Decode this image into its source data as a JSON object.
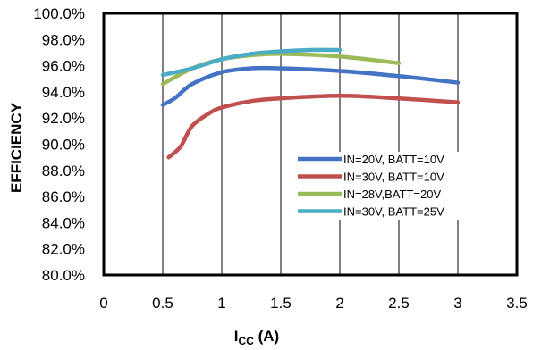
{
  "chart_data": {
    "type": "line",
    "xlabel_main": "I",
    "xlabel_sub": "CC",
    "xlabel_unit": " (A)",
    "ylabel": "EFFICIENCY",
    "xlim": [
      0,
      3.5
    ],
    "ylim": [
      80,
      100
    ],
    "x_ticks": [
      0,
      0.5,
      1,
      1.5,
      2,
      2.5,
      3,
      3.5
    ],
    "x_tick_labels": [
      "0",
      "0.5",
      "1",
      "1.5",
      "2",
      "2.5",
      "3",
      "3.5"
    ],
    "y_ticks": [
      80,
      82,
      84,
      86,
      88,
      90,
      92,
      94,
      96,
      98,
      100
    ],
    "y_tick_labels": [
      "80.0%",
      "82.0%",
      "84.0%",
      "86.0%",
      "88.0%",
      "90.0%",
      "92.0%",
      "94.0%",
      "96.0%",
      "98.0%",
      "100.0%"
    ],
    "grid": {
      "vertical": true,
      "horizontal": false
    },
    "legend_position": "center-right",
    "series": [
      {
        "name": "IN=20V, BATT=10V",
        "color": "#4472C4",
        "points": [
          [
            0.5,
            93.0
          ],
          [
            0.6,
            93.5
          ],
          [
            0.75,
            94.6
          ],
          [
            1.0,
            95.5
          ],
          [
            1.25,
            95.8
          ],
          [
            1.5,
            95.8
          ],
          [
            2.0,
            95.6
          ],
          [
            2.5,
            95.2
          ],
          [
            3.0,
            94.7
          ]
        ]
      },
      {
        "name": "IN=30V, BATT=10V",
        "color": "#C0504D",
        "points": [
          [
            0.55,
            89.0
          ],
          [
            0.65,
            89.8
          ],
          [
            0.75,
            91.4
          ],
          [
            0.9,
            92.4
          ],
          [
            1.0,
            92.8
          ],
          [
            1.25,
            93.3
          ],
          [
            1.5,
            93.5
          ],
          [
            2.0,
            93.7
          ],
          [
            2.5,
            93.5
          ],
          [
            3.0,
            93.2
          ]
        ]
      },
      {
        "name": "IN=28V,BATT=20V",
        "color": "#9BBB59",
        "points": [
          [
            0.5,
            94.6
          ],
          [
            0.75,
            95.8
          ],
          [
            1.0,
            96.5
          ],
          [
            1.25,
            96.8
          ],
          [
            1.5,
            96.9
          ],
          [
            2.0,
            96.7
          ],
          [
            2.5,
            96.2
          ]
        ]
      },
      {
        "name": "IN=30V, BATT=25V",
        "color": "#4BACC6",
        "points": [
          [
            0.5,
            95.3
          ],
          [
            0.75,
            95.8
          ],
          [
            1.0,
            96.5
          ],
          [
            1.25,
            96.9
          ],
          [
            1.5,
            97.1
          ],
          [
            1.75,
            97.2
          ],
          [
            2.0,
            97.2
          ]
        ]
      }
    ]
  }
}
